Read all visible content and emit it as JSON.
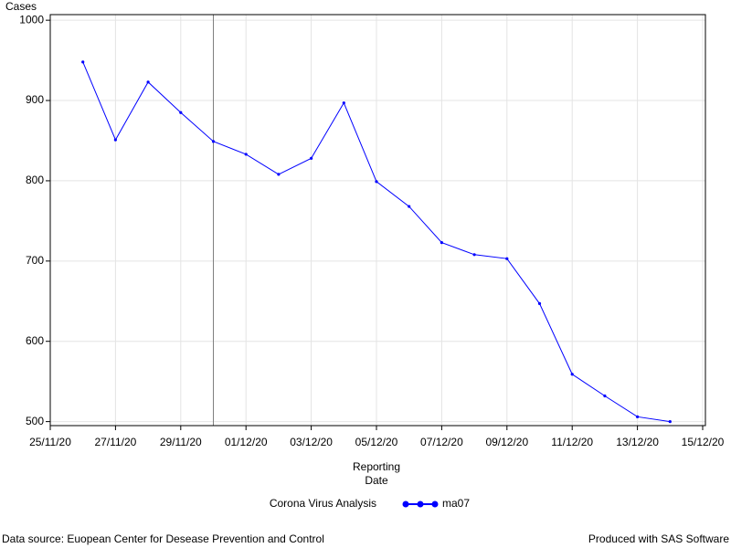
{
  "chart_data": {
    "type": "line",
    "ylabel": "Cases",
    "xlabel": "Reporting Date",
    "x": [
      "26/11/20",
      "27/11/20",
      "28/11/20",
      "29/11/20",
      "30/11/20",
      "01/12/20",
      "02/12/20",
      "03/12/20",
      "04/12/20",
      "05/12/20",
      "06/12/20",
      "07/12/20",
      "08/12/20",
      "09/12/20",
      "10/12/20",
      "11/12/20",
      "12/12/20",
      "13/12/20",
      "14/12/20"
    ],
    "series": [
      {
        "name": "ma07",
        "color": "#0000ff",
        "values": [
          948,
          851,
          923,
          885,
          849,
          833,
          808,
          828,
          897,
          799,
          768,
          723,
          708,
          703,
          647,
          559,
          532,
          506,
          500
        ]
      }
    ],
    "legend_title": "Corona Virus Analysis",
    "xlim": [
      "25/11/20",
      "15/12/20"
    ],
    "xticks": [
      "25/11/20",
      "27/11/20",
      "29/11/20",
      "01/12/20",
      "03/12/20",
      "05/12/20",
      "07/12/20",
      "09/12/20",
      "11/12/20",
      "13/12/20",
      "15/12/20"
    ],
    "ylim": [
      495,
      1007
    ],
    "yticks": [
      500,
      600,
      700,
      800,
      900,
      1000
    ],
    "grid": true,
    "reference_line": "30/11/20",
    "footnote_left": "Data source: Euopean Center for Desease Prevention and Control",
    "footnote_right": "Produced with SAS Software"
  }
}
